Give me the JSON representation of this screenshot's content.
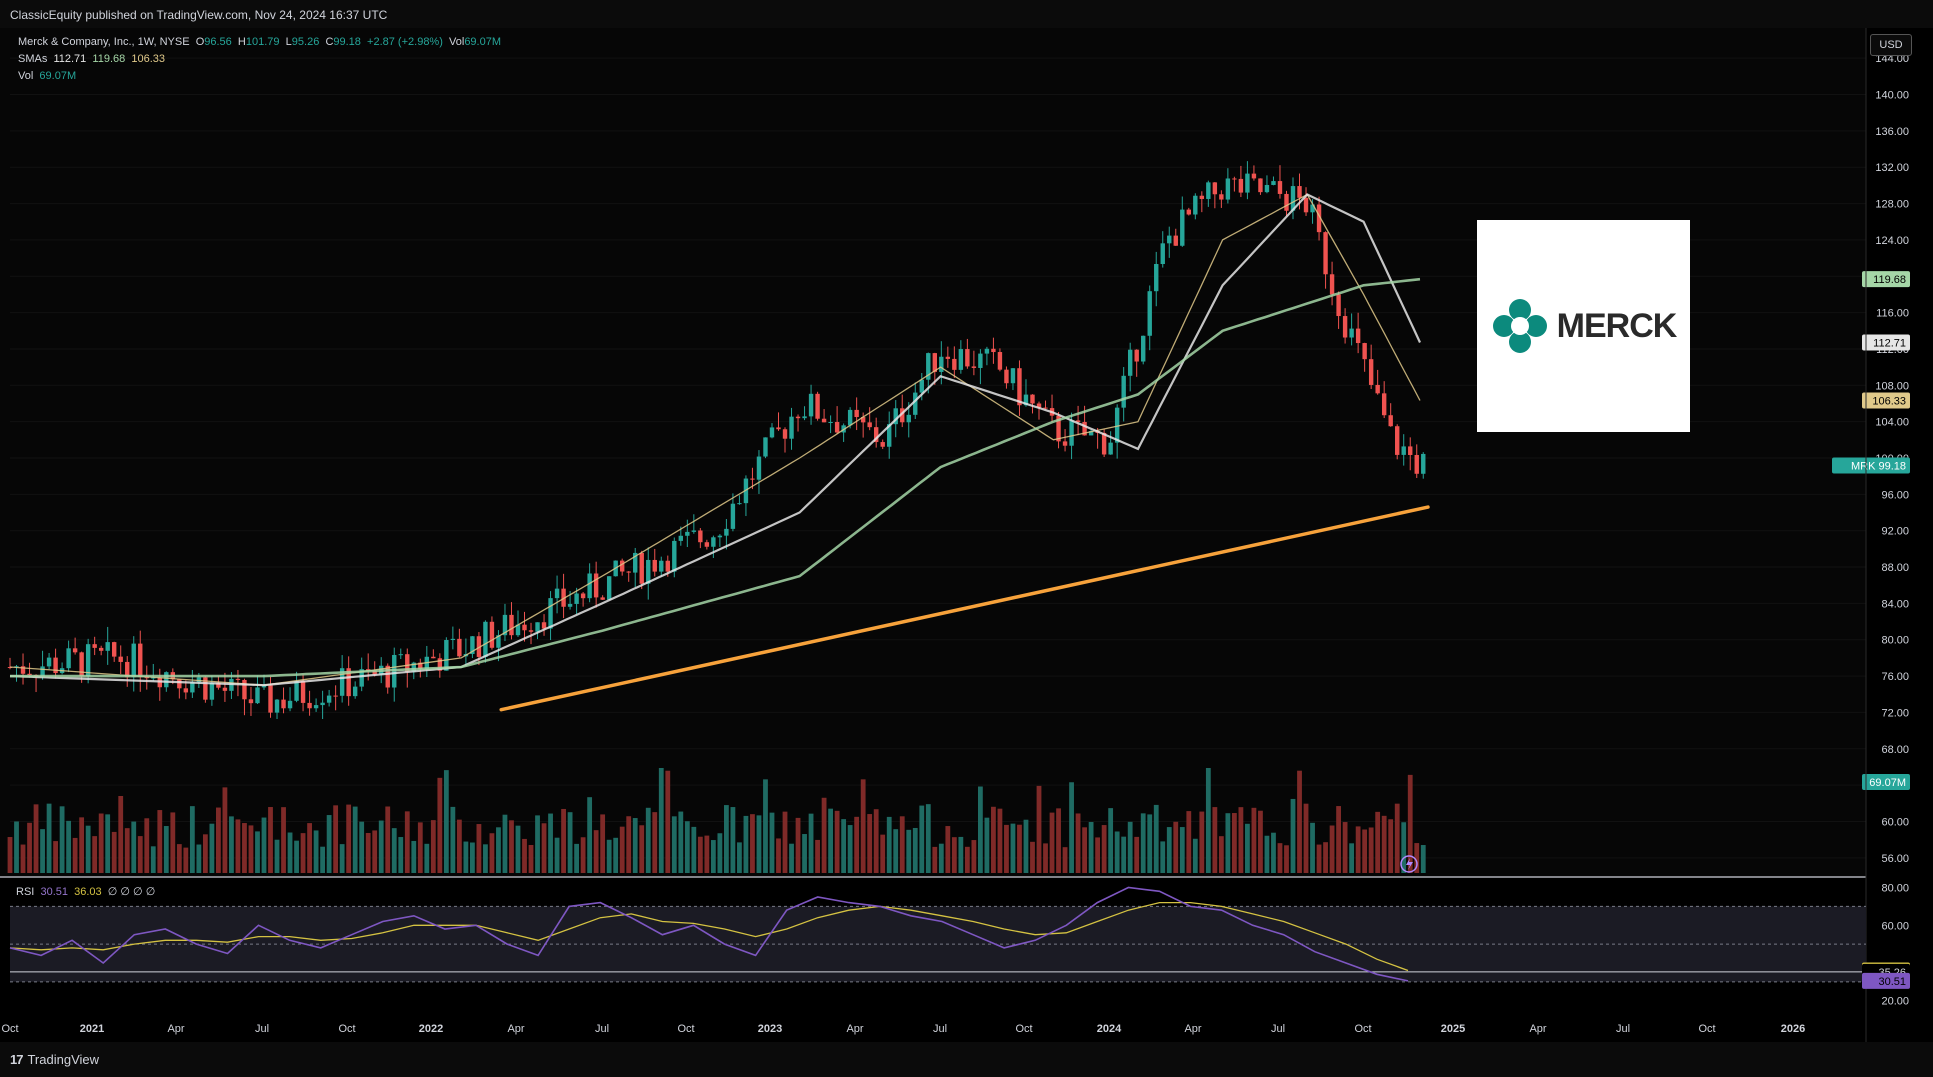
{
  "header": {
    "publisher_line": "ClassicEquity published on TradingView.com, Nov 24, 2024 16:37 UTC"
  },
  "legend": {
    "symbol_label": "Merck & Company, Inc., 1W, NYSE",
    "open_label": "O",
    "open": "96.56",
    "high_label": "H",
    "high": "101.79",
    "low_label": "L",
    "low": "95.26",
    "close_label": "C",
    "close": "99.18",
    "change": "+2.87 (+2.98%)",
    "vol_label": "Vol",
    "vol": "69.07M",
    "smas_label": "SMAs",
    "sma1": "112.71",
    "sma2": "119.68",
    "sma3": "106.33",
    "vol_row_label": "Vol",
    "vol_row_value": "69.07M"
  },
  "rsi_legend": {
    "label": "RSI",
    "value": "30.51",
    "ma": "36.03",
    "extra": "∅ ∅ ∅ ∅"
  },
  "currency_button": "USD",
  "brand": {
    "name": "TradingView"
  },
  "logo": {
    "text": "MERCK"
  },
  "colors": {
    "up": "#26a69a",
    "down": "#ef5350",
    "vol_up": "#1f6b63",
    "vol_down": "#7f2a28",
    "sma_fast": "#e0c98a",
    "sma_mid": "#e6e6e6",
    "sma_slow": "#a5d6a7",
    "trendline": "#f7a23b",
    "rsi": "#7e57c2",
    "rsi_ma": "#d4c242"
  },
  "chart_data": {
    "type": "candlestick",
    "title": "Merck & Company, Inc., 1W, NYSE",
    "price_axis": {
      "ticks": [
        "144.00",
        "140.00",
        "136.00",
        "132.00",
        "128.00",
        "124.00",
        "120.00",
        "116.00",
        "112.00",
        "108.00",
        "104.00",
        "100.00",
        "96.00",
        "92.00",
        "88.00",
        "84.00",
        "80.00",
        "76.00",
        "72.00",
        "68.00",
        "64.00",
        "60.00",
        "56.00"
      ],
      "range": [
        54,
        146
      ]
    },
    "time_axis": {
      "ticks": [
        "Oct",
        "2021",
        "Apr",
        "Jul",
        "Oct",
        "2022",
        "Apr",
        "Jul",
        "Oct",
        "2023",
        "Apr",
        "Jul",
        "Oct",
        "2024",
        "Apr",
        "Jul",
        "Oct",
        "2025",
        "Apr",
        "Jul",
        "Oct",
        "2026"
      ]
    },
    "price_labels": [
      {
        "label": "",
        "value": "119.68",
        "color": "#a5d6a7",
        "text_color": "#000"
      },
      {
        "label": "",
        "value": "112.71",
        "color": "#e6e6e6",
        "text_color": "#000"
      },
      {
        "label": "",
        "value": "106.33",
        "color": "#e0c98a",
        "text_color": "#000"
      },
      {
        "label": "MRK",
        "value": "99.18",
        "color": "#26a69a",
        "text_color": "#fff"
      },
      {
        "label": "",
        "value": "69.07M",
        "color": "#26a69a",
        "text_color": "#fff"
      }
    ],
    "series": [
      {
        "name": "MRK",
        "x": [
          "2020-09",
          "2021-01",
          "2021-06",
          "2021-10",
          "2022-01",
          "2022-06",
          "2022-10",
          "2023-01",
          "2023-04",
          "2023-06",
          "2023-08",
          "2023-10",
          "2023-12",
          "2024-02",
          "2024-04",
          "2024-06",
          "2024-07",
          "2024-08",
          "2024-10",
          "2024-11"
        ],
        "close": [
          77,
          78,
          73,
          76,
          79,
          86,
          92,
          106,
          102,
          112,
          110,
          103,
          102,
          124,
          130,
          129,
          128,
          118,
          102,
          99.18
        ]
      },
      {
        "name": "",
        "x": [
          "2020-09",
          "2021-06",
          "2022-01",
          "2022-06",
          "2023-01",
          "2023-06",
          "2023-10",
          "2024-01",
          "2024-04",
          "2024-07",
          "2024-09",
          "2024-11"
        ],
        "values": [
          77,
          75,
          78,
          87,
          100,
          110,
          102,
          104,
          124,
          129,
          118,
          106.33
        ]
      },
      {
        "name": "",
        "x": [
          "2020-09",
          "2021-06",
          "2022-01",
          "2022-06",
          "2023-01",
          "2023-06",
          "2023-10",
          "2024-01",
          "2024-04",
          "2024-07",
          "2024-09",
          "2024-11"
        ],
        "values": [
          76,
          75,
          77,
          84,
          94,
          109,
          105,
          101,
          119,
          129,
          126,
          112.71
        ]
      },
      {
        "name": "",
        "x": [
          "2020-09",
          "2021-06",
          "2022-01",
          "2022-06",
          "2023-01",
          "2023-06",
          "2023-10",
          "2024-01",
          "2024-04",
          "2024-07",
          "2024-09",
          "2024-11"
        ],
        "values": [
          76,
          76,
          77,
          81,
          87,
          99,
          104,
          107,
          114,
          117,
          119,
          119.68
        ]
      }
    ],
    "trendline": {
      "from": {
        "x": "2022-01",
        "y": 72.3
      },
      "to": {
        "x": "2024-11",
        "y": 94.6
      }
    },
    "rsi": {
      "axis_ticks": [
        "80.00",
        "60.00",
        "20.00"
      ],
      "levels": {
        "upper": 70,
        "middle": 50,
        "lower": 30
      },
      "range": [
        14,
        84
      ],
      "value_labels": [
        {
          "value": "36.03",
          "color": "#d4c242"
        },
        {
          "value": "35.26",
          "color": "#d1d4dc"
        },
        {
          "value": "30.51",
          "color": "#7e57c2"
        }
      ],
      "values": [
        48,
        44,
        52,
        40,
        55,
        58,
        50,
        45,
        60,
        52,
        48,
        55,
        62,
        65,
        58,
        60,
        50,
        44,
        70,
        72,
        64,
        55,
        60,
        50,
        44,
        68,
        75,
        72,
        70,
        65,
        62,
        55,
        48,
        52,
        60,
        72,
        80,
        78,
        70,
        68,
        60,
        55,
        46,
        40,
        34,
        30.51
      ],
      "ma": [
        48,
        47,
        48,
        47,
        50,
        52,
        52,
        51,
        54,
        54,
        52,
        53,
        56,
        60,
        60,
        60,
        56,
        52,
        58,
        64,
        66,
        62,
        61,
        58,
        54,
        58,
        64,
        68,
        70,
        68,
        65,
        62,
        58,
        55,
        56,
        62,
        68,
        72,
        72,
        70,
        66,
        62,
        56,
        50,
        42,
        36.03
      ]
    }
  }
}
